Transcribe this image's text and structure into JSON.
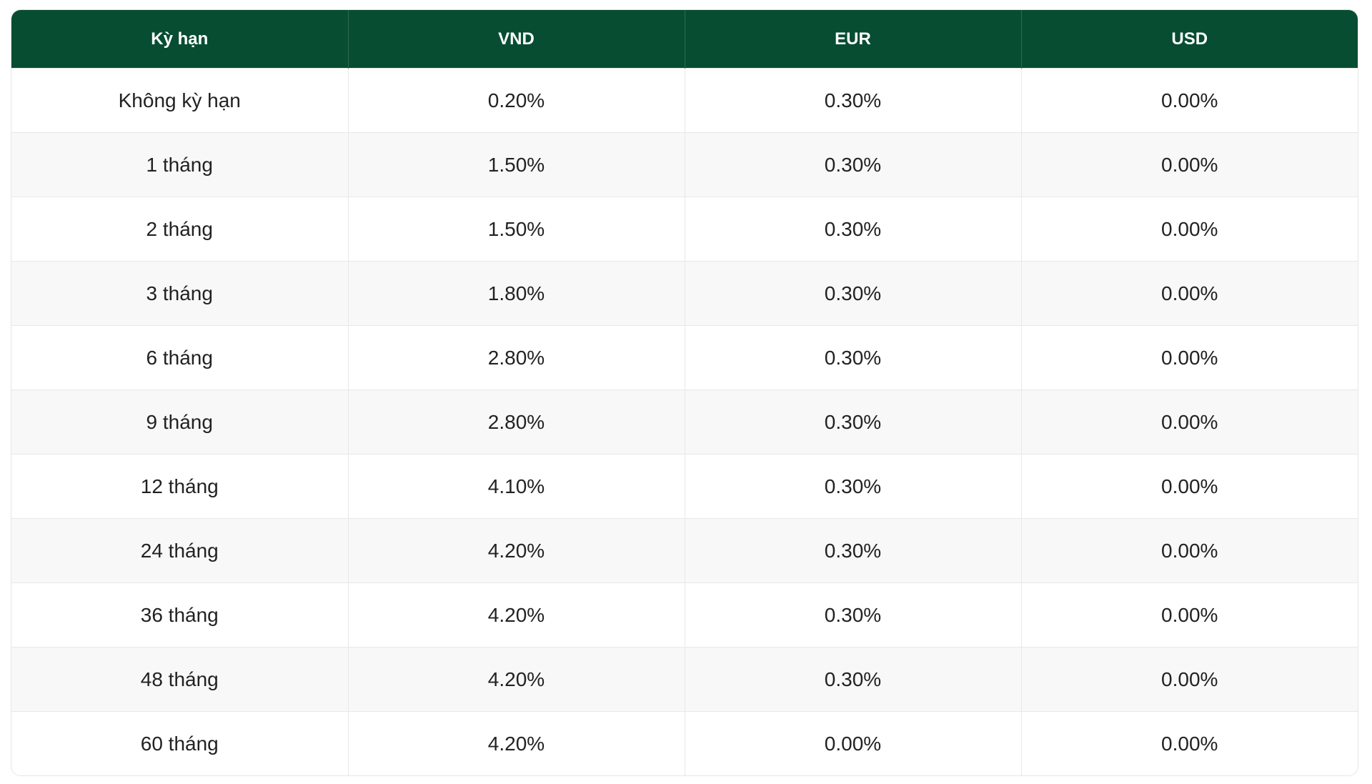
{
  "table": {
    "header": [
      "Kỳ hạn",
      "VND",
      "EUR",
      "USD"
    ],
    "rows": [
      [
        "Không kỳ hạn",
        "0.20%",
        "0.30%",
        "0.00%"
      ],
      [
        "1 tháng",
        "1.50%",
        "0.30%",
        "0.00%"
      ],
      [
        "2 tháng",
        "1.50%",
        "0.30%",
        "0.00%"
      ],
      [
        "3 tháng",
        "1.80%",
        "0.30%",
        "0.00%"
      ],
      [
        "6 tháng",
        "2.80%",
        "0.30%",
        "0.00%"
      ],
      [
        "9 tháng",
        "2.80%",
        "0.30%",
        "0.00%"
      ],
      [
        "12 tháng",
        "4.10%",
        "0.30%",
        "0.00%"
      ],
      [
        "24 tháng",
        "4.20%",
        "0.30%",
        "0.00%"
      ],
      [
        "36 tháng",
        "4.20%",
        "0.30%",
        "0.00%"
      ],
      [
        "48 tháng",
        "4.20%",
        "0.30%",
        "0.00%"
      ],
      [
        "60 tháng",
        "4.20%",
        "0.00%",
        "0.00%"
      ]
    ]
  }
}
